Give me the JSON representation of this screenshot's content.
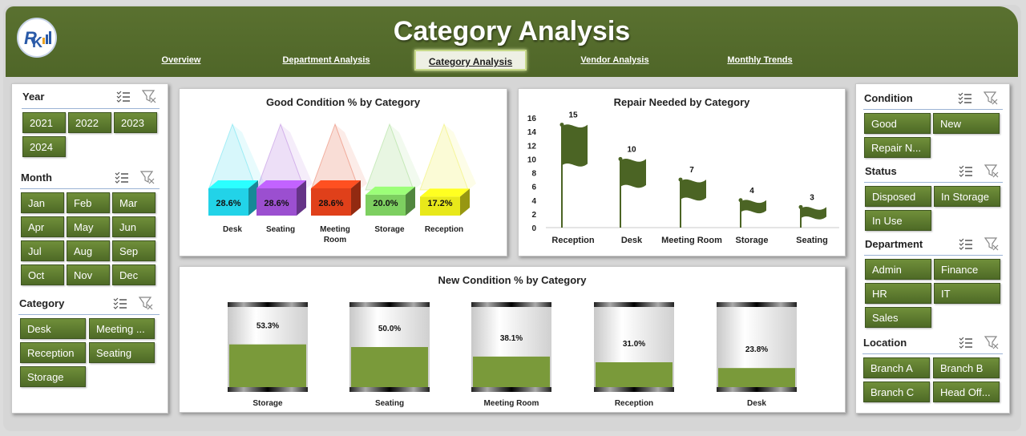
{
  "header": {
    "title": "Category Analysis",
    "tabs": [
      {
        "label": "Overview",
        "active": false
      },
      {
        "label": "Department Analysis",
        "active": false
      },
      {
        "label": "Category Analysis",
        "active": true
      },
      {
        "label": "Vendor Analysis",
        "active": false
      },
      {
        "label": "Monthly Trends",
        "active": false
      }
    ]
  },
  "left_slicers": {
    "year": {
      "title": "Year",
      "items": [
        "2021",
        "2022",
        "2023",
        "2024"
      ]
    },
    "month": {
      "title": "Month",
      "items": [
        "Jan",
        "Feb",
        "Mar",
        "Apr",
        "May",
        "Jun",
        "Jul",
        "Aug",
        "Sep",
        "Oct",
        "Nov",
        "Dec"
      ]
    },
    "category": {
      "title": "Category",
      "items": [
        "Desk",
        "Meeting ...",
        "Reception",
        "Seating",
        "Storage"
      ]
    }
  },
  "right_slicers": {
    "condition": {
      "title": "Condition",
      "items": [
        "Good",
        "New",
        "Repair N..."
      ]
    },
    "status": {
      "title": "Status",
      "items": [
        "Disposed",
        "In Storage",
        "In Use"
      ]
    },
    "department": {
      "title": "Department",
      "items": [
        "Admin",
        "Finance",
        "HR",
        "IT",
        "Sales"
      ]
    },
    "location": {
      "title": "Location",
      "items": [
        "Branch A",
        "Branch B",
        "Branch C",
        "Head Off..."
      ]
    }
  },
  "icons": {
    "multi_select": "multi-select-icon",
    "clear_filter": "clear-filter-icon"
  },
  "colors": {
    "accent": "#556b2f",
    "bar_fill": "#7a9a3a",
    "flag": "#4b6424"
  },
  "chart_data": [
    {
      "type": "bar",
      "title": "Good Condition % by Category",
      "categories": [
        "Desk",
        "Seating",
        "Meeting Room",
        "Storage",
        "Reception"
      ],
      "values": [
        28.6,
        28.6,
        28.6,
        20.0,
        17.2
      ],
      "value_labels": [
        "28.6%",
        "28.6%",
        "28.6%",
        "20.0%",
        "17.2%"
      ],
      "colors": [
        "#22d3e8",
        "#9b4fd0",
        "#e0401a",
        "#7dcf60",
        "#e8e81a"
      ]
    },
    {
      "type": "bar",
      "title": "Repair Needed by Category",
      "categories": [
        "Reception",
        "Desk",
        "Meeting Room",
        "Storage",
        "Seating"
      ],
      "values": [
        15,
        10,
        7,
        4,
        3
      ],
      "ylim": [
        0,
        16
      ],
      "yticks": [
        "0",
        "2",
        "4",
        "6",
        "8",
        "10",
        "12",
        "14",
        "16"
      ]
    },
    {
      "type": "bar",
      "title": "New Condition % by Category",
      "categories": [
        "Storage",
        "Seating",
        "Meeting Room",
        "Reception",
        "Desk"
      ],
      "values": [
        53.3,
        50.0,
        38.1,
        31.0,
        23.8
      ],
      "value_labels": [
        "53.3%",
        "50.0%",
        "38.1%",
        "31.0%",
        "23.8%"
      ],
      "ylim": [
        0,
        100
      ]
    }
  ]
}
